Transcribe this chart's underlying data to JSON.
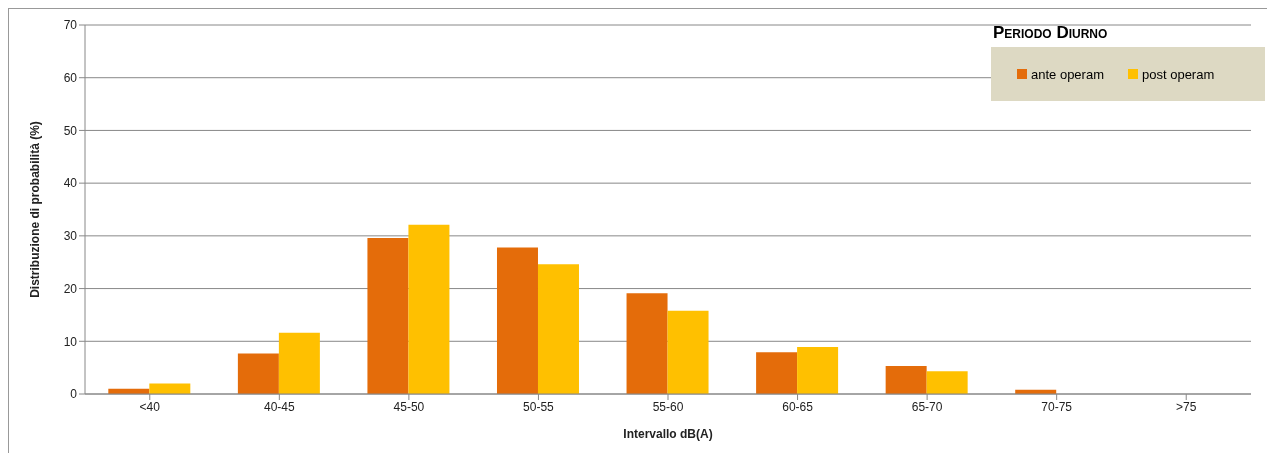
{
  "chart_data": {
    "type": "bar",
    "xlabel": "Intervallo dB(A)",
    "ylabel": "Distribuzione di probabilità (%)",
    "legend_title": "Periodo Diurno",
    "categories": [
      "<40",
      "40-45",
      "45-50",
      "50-55",
      "55-60",
      "60-65",
      "65-70",
      "70-75",
      ">75"
    ],
    "series": [
      {
        "name": "ante operam",
        "color": "#e46c0a",
        "values": [
          1.0,
          7.7,
          29.6,
          27.8,
          19.1,
          7.9,
          5.3,
          0.8,
          0
        ]
      },
      {
        "name": "post operam",
        "color": "#ffc000",
        "values": [
          2.0,
          11.6,
          32.1,
          24.6,
          15.8,
          8.9,
          4.3,
          0,
          0
        ]
      }
    ],
    "ylim": [
      0,
      70
    ],
    "yticks": [
      0,
      10,
      20,
      30,
      40,
      50,
      60,
      70
    ],
    "grid": "y",
    "legend": "top right"
  }
}
